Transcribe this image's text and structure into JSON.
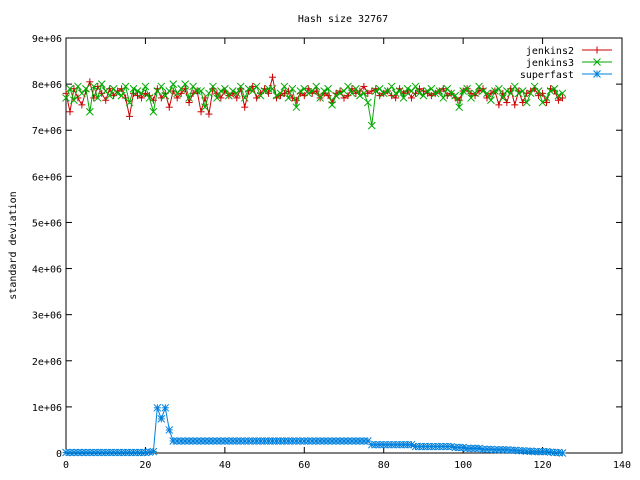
{
  "chart_data": {
    "type": "line",
    "title": "Hash size 32767",
    "xlabel": "",
    "ylabel": "standard deviation",
    "xlim": [
      0,
      140
    ],
    "ylim": [
      0,
      9000000
    ],
    "x_ticks": [
      0,
      20,
      40,
      60,
      80,
      100,
      120,
      140
    ],
    "x_tick_labels": [
      "0",
      "20",
      "40",
      "60",
      "80",
      "100",
      "120",
      "140"
    ],
    "y_ticks": [
      0,
      1000000,
      2000000,
      3000000,
      4000000,
      5000000,
      6000000,
      7000000,
      8000000,
      9000000
    ],
    "y_tick_labels": [
      "0",
      "1e+06",
      "2e+06",
      "3e+06",
      "4e+06",
      "5e+06",
      "6e+06",
      "7e+06",
      "8e+06",
      "9e+06"
    ],
    "grid": false,
    "legend_position": "top-right",
    "series": [
      {
        "name": "jenkins2",
        "color": "#cc0000",
        "marker": "plus",
        "x": [
          0,
          1,
          2,
          3,
          4,
          5,
          6,
          7,
          8,
          9,
          10,
          11,
          12,
          13,
          14,
          15,
          16,
          17,
          18,
          19,
          20,
          21,
          22,
          23,
          24,
          25,
          26,
          27,
          28,
          29,
          30,
          31,
          32,
          33,
          34,
          35,
          36,
          37,
          38,
          39,
          40,
          41,
          42,
          43,
          44,
          45,
          46,
          47,
          48,
          49,
          50,
          51,
          52,
          53,
          54,
          55,
          56,
          57,
          58,
          59,
          60,
          61,
          62,
          63,
          64,
          65,
          66,
          67,
          68,
          69,
          70,
          71,
          72,
          73,
          74,
          75,
          76,
          77,
          78,
          79,
          80,
          81,
          82,
          83,
          84,
          85,
          86,
          87,
          88,
          89,
          90,
          91,
          92,
          93,
          94,
          95,
          96,
          97,
          98,
          99,
          100,
          101,
          102,
          103,
          104,
          105,
          106,
          107,
          108,
          109,
          110,
          111,
          112,
          113,
          114,
          115,
          116,
          117,
          118,
          119,
          120,
          121,
          122,
          123,
          124,
          125
        ],
        "y": [
          7800000,
          7400000,
          7900000,
          7700000,
          7550000,
          7850000,
          8050000,
          7700000,
          7950000,
          7800000,
          7650000,
          7900000,
          7750000,
          7850000,
          7900000,
          7700000,
          7300000,
          7800000,
          7750000,
          7700000,
          7800000,
          7750000,
          7650000,
          7900000,
          7700000,
          7800000,
          7500000,
          7850000,
          7700000,
          7800000,
          7900000,
          7600000,
          7800000,
          7850000,
          7400000,
          7700000,
          7350000,
          7900000,
          7800000,
          7700000,
          7850000,
          7750000,
          7800000,
          7700000,
          7900000,
          7500000,
          7850000,
          7950000,
          7700000,
          7800000,
          7900000,
          7800000,
          8150000,
          7700000,
          7750000,
          7800000,
          7850000,
          7700000,
          7650000,
          7800000,
          7750000,
          7900000,
          7800000,
          7850000,
          7700000,
          7800000,
          7750000,
          7600000,
          7800000,
          7850000,
          7700000,
          7750000,
          7900000,
          7800000,
          7850000,
          7950000,
          7800000,
          7850000,
          7900000,
          7750000,
          7800000,
          7850000,
          7750000,
          7700000,
          7900000,
          7800000,
          7850000,
          7700000,
          7800000,
          7900000,
          7850000,
          7800000,
          7750000,
          7800000,
          7850000,
          7900000,
          7750000,
          7800000,
          7700000,
          7650000,
          7850000,
          7900000,
          7800000,
          7750000,
          7850000,
          7900000,
          7700000,
          7800000,
          7850000,
          7550000,
          7800000,
          7600000,
          7900000,
          7550000,
          7850000,
          7600000,
          7800000,
          7850000,
          7900000,
          7750000,
          7800000,
          7600000,
          7900000,
          7850000,
          7650000,
          7700000
        ]
      },
      {
        "name": "jenkins3",
        "color": "#00aa00",
        "marker": "cross",
        "x": [
          0,
          1,
          2,
          3,
          4,
          5,
          6,
          7,
          8,
          9,
          10,
          11,
          12,
          13,
          14,
          15,
          16,
          17,
          18,
          19,
          20,
          21,
          22,
          23,
          24,
          25,
          26,
          27,
          28,
          29,
          30,
          31,
          32,
          33,
          34,
          35,
          36,
          37,
          38,
          39,
          40,
          41,
          42,
          43,
          44,
          45,
          46,
          47,
          48,
          49,
          50,
          51,
          52,
          53,
          54,
          55,
          56,
          57,
          58,
          59,
          60,
          61,
          62,
          63,
          64,
          65,
          66,
          67,
          68,
          69,
          70,
          71,
          72,
          73,
          74,
          75,
          76,
          77,
          78,
          79,
          80,
          81,
          82,
          83,
          84,
          85,
          86,
          87,
          88,
          89,
          90,
          91,
          92,
          93,
          94,
          95,
          96,
          97,
          98,
          99,
          100,
          101,
          102,
          103,
          104,
          105,
          106,
          107,
          108,
          109,
          110,
          111,
          112,
          113,
          114,
          115,
          116,
          117,
          118,
          119,
          120,
          121,
          122,
          123,
          124,
          125
        ],
        "y": [
          7700000,
          7900000,
          7650000,
          7950000,
          7800000,
          7900000,
          7400000,
          7950000,
          7700000,
          8000000,
          7850000,
          7750000,
          7900000,
          7800000,
          7750000,
          7950000,
          7600000,
          7900000,
          7850000,
          7800000,
          7950000,
          7700000,
          7400000,
          7850000,
          7950000,
          7750000,
          7850000,
          8000000,
          7800000,
          7900000,
          8000000,
          7700000,
          7950000,
          7850000,
          7850000,
          7500000,
          7800000,
          7950000,
          7700000,
          7850000,
          7900000,
          7750000,
          7850000,
          7800000,
          7950000,
          7700000,
          7900000,
          7850000,
          7950000,
          7750000,
          7850000,
          7900000,
          7900000,
          7750000,
          7800000,
          7950000,
          7700000,
          7900000,
          7500000,
          7850000,
          7900000,
          7800000,
          7850000,
          7950000,
          7700000,
          7850000,
          7900000,
          7550000,
          7750000,
          7800000,
          7850000,
          7950000,
          7800000,
          7900000,
          7750000,
          7800000,
          7600000,
          7100000,
          7850000,
          7900000,
          7800000,
          7850000,
          7950000,
          7800000,
          7850000,
          7700000,
          7900000,
          7850000,
          7950000,
          7800000,
          7750000,
          7850000,
          7900000,
          7800000,
          7850000,
          7700000,
          7900000,
          7800000,
          7750000,
          7500000,
          7850000,
          7900000,
          7700000,
          7800000,
          7950000,
          7850000,
          7800000,
          7650000,
          7850000,
          7900000,
          7700000,
          7850000,
          7800000,
          7950000,
          7800000,
          7850000,
          7600000,
          7800000,
          7950000,
          7850000,
          7600000,
          7700000,
          7850000,
          7900000,
          7750000,
          7800000
        ]
      },
      {
        "name": "superfast",
        "color": "#0080dd",
        "marker": "star",
        "x": [
          0,
          1,
          2,
          3,
          4,
          5,
          6,
          7,
          8,
          9,
          10,
          11,
          12,
          13,
          14,
          15,
          16,
          17,
          18,
          19,
          20,
          21,
          22,
          23,
          24,
          25,
          26,
          27,
          28,
          29,
          30,
          31,
          32,
          33,
          34,
          35,
          36,
          37,
          38,
          39,
          40,
          41,
          42,
          43,
          44,
          45,
          46,
          47,
          48,
          49,
          50,
          51,
          52,
          53,
          54,
          55,
          56,
          57,
          58,
          59,
          60,
          61,
          62,
          63,
          64,
          65,
          66,
          67,
          68,
          69,
          70,
          71,
          72,
          73,
          74,
          75,
          76,
          77,
          78,
          79,
          80,
          81,
          82,
          83,
          84,
          85,
          86,
          87,
          88,
          89,
          90,
          91,
          92,
          93,
          94,
          95,
          96,
          97,
          98,
          99,
          100,
          101,
          102,
          103,
          104,
          105,
          106,
          107,
          108,
          109,
          110,
          111,
          112,
          113,
          114,
          115,
          116,
          117,
          118,
          119,
          120,
          121,
          122,
          123,
          124,
          125
        ],
        "y": [
          10000,
          10000,
          10000,
          10000,
          10000,
          10000,
          10000,
          10000,
          10000,
          10000,
          10000,
          10000,
          10000,
          10000,
          10000,
          10000,
          10000,
          10000,
          10000,
          10000,
          10000,
          20000,
          30000,
          980000,
          740000,
          980000,
          500000,
          260000,
          260000,
          260000,
          260000,
          260000,
          260000,
          260000,
          260000,
          260000,
          260000,
          260000,
          260000,
          260000,
          260000,
          260000,
          260000,
          260000,
          260000,
          260000,
          260000,
          260000,
          260000,
          260000,
          260000,
          260000,
          260000,
          260000,
          260000,
          260000,
          260000,
          260000,
          260000,
          260000,
          260000,
          260000,
          260000,
          260000,
          260000,
          260000,
          260000,
          260000,
          260000,
          260000,
          260000,
          260000,
          260000,
          260000,
          260000,
          260000,
          260000,
          180000,
          180000,
          180000,
          180000,
          180000,
          180000,
          180000,
          180000,
          180000,
          180000,
          180000,
          140000,
          140000,
          140000,
          140000,
          140000,
          140000,
          140000,
          140000,
          140000,
          140000,
          120000,
          120000,
          120000,
          100000,
          100000,
          100000,
          100000,
          80000,
          80000,
          80000,
          70000,
          70000,
          70000,
          70000,
          60000,
          60000,
          50000,
          50000,
          40000,
          40000,
          30000,
          30000,
          30000,
          30000,
          20000,
          10000,
          10000,
          0
        ]
      }
    ]
  }
}
